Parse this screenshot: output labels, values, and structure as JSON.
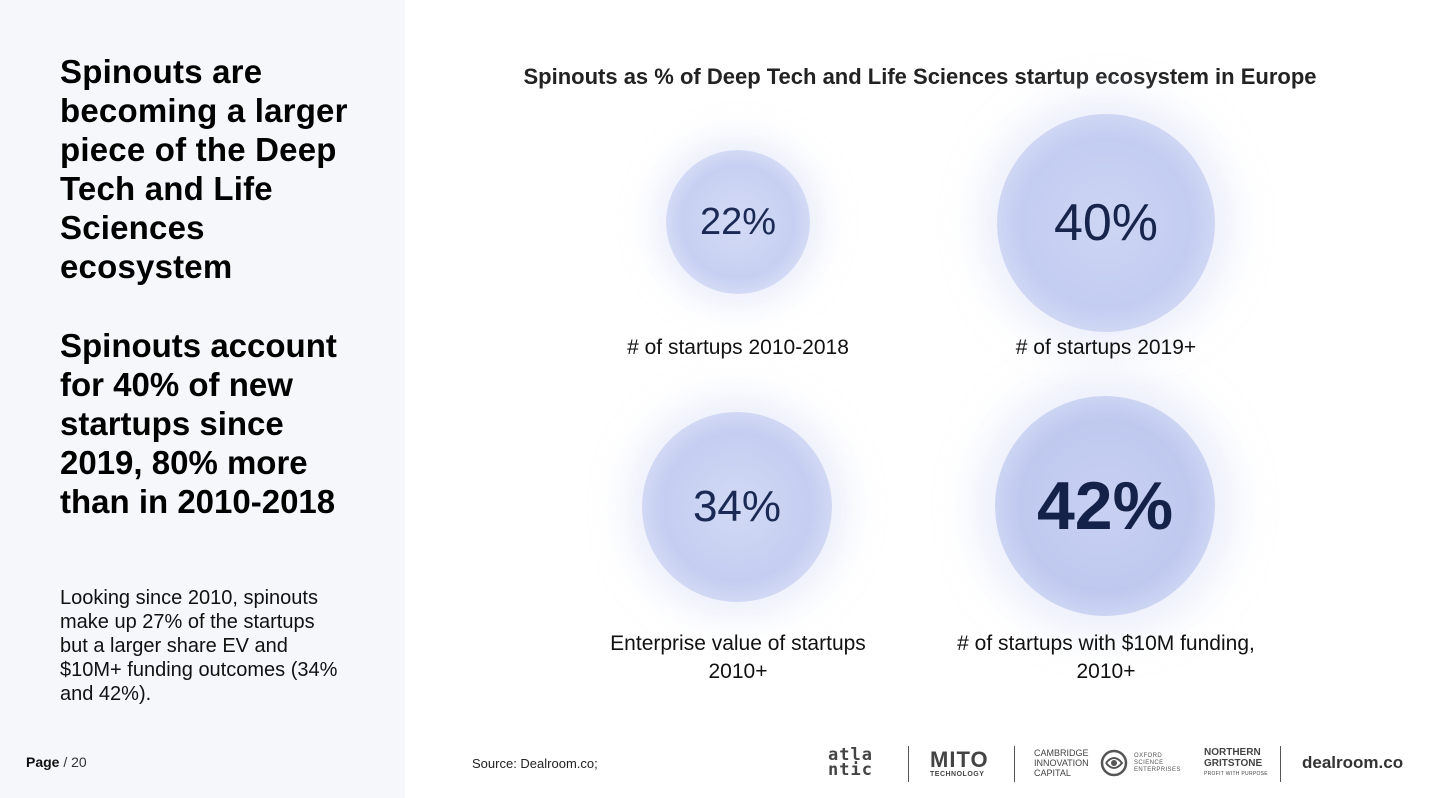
{
  "left_panel": {
    "headline": "Spinouts are becoming a larger piece of the Deep Tech and Life Sciences ecosystem",
    "subheadline": "Spinouts account for 40% of new startups since 2019, 80% more than in 2010-2018",
    "body": "Looking since 2010, spinouts make up 27% of the startups but a larger share EV and $10M+ funding outcomes (34% and 42%).",
    "page_label": "Page",
    "page_number": "/ 20"
  },
  "chart_data": {
    "type": "bubble",
    "title": "Spinouts as % of Deep Tech and Life Sciences startup ecosystem in Europe",
    "items": [
      {
        "label": "# of startups 2010-2018",
        "value": 22,
        "display": "22%"
      },
      {
        "label": "# of startups 2019+",
        "value": 40,
        "display": "40%"
      },
      {
        "label": "Enterprise value of startups 2010+",
        "value": 34,
        "display": "34%"
      },
      {
        "label": "# of startups with $10M funding, 2010+",
        "value": 42,
        "display": "42%"
      }
    ],
    "bubble_color": "#c7d0f2",
    "value_text_color": "#1b2a55"
  },
  "footer": {
    "source": "Source:  Dealroom.co;",
    "logos": {
      "atlantic_line1": "atla",
      "atlantic_line2": "ntic",
      "mito_mark": "MITO",
      "mito_sub": "TECHNOLOGY",
      "cambridge_line1": "CAMBRIDGE",
      "cambridge_line2": "INNOVATION",
      "cambridge_line3": "CAPITAL",
      "oxford_line1": "OXFORD",
      "oxford_line2": "SCIENCE",
      "oxford_line3": "ENTERPRISES",
      "northern_line1": "NORTHERN",
      "northern_line2": "GRITSTONE",
      "northern_tag": "PROFIT WITH PURPOSE",
      "dealroom": "dealroom.co"
    }
  }
}
